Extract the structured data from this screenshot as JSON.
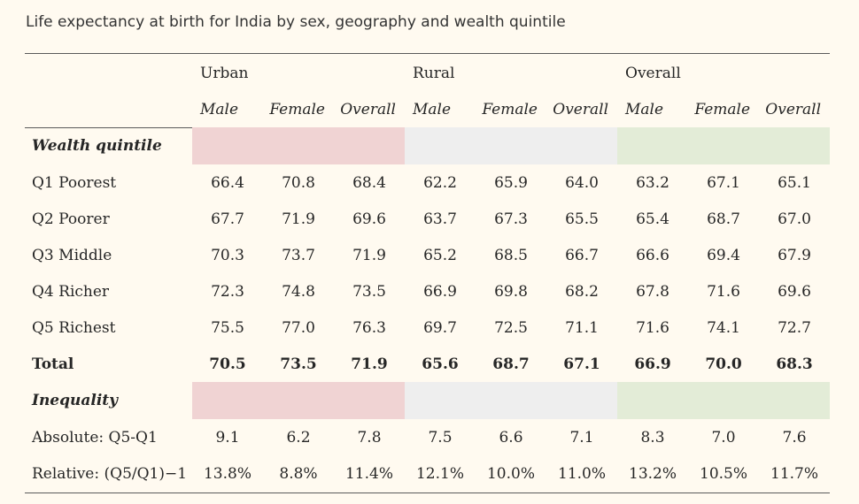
{
  "title": "Life expectancy at birth for India by sex, geography and wealth quintile",
  "groups": {
    "urban": "Urban",
    "rural": "Rural",
    "overall": "Overall"
  },
  "subheaders": [
    "Male",
    "Female",
    "Overall",
    "Male",
    "Female",
    "Overall",
    "Male",
    "Female",
    "Overall"
  ],
  "sections": {
    "wealth": {
      "label": "Wealth quintile",
      "rows": [
        {
          "label": "Q1 Poorest",
          "values": [
            "66.4",
            "70.8",
            "68.4",
            "62.2",
            "65.9",
            "64.0",
            "63.2",
            "67.1",
            "65.1"
          ]
        },
        {
          "label": "Q2 Poorer",
          "values": [
            "67.7",
            "71.9",
            "69.6",
            "63.7",
            "67.3",
            "65.5",
            "65.4",
            "68.7",
            "67.0"
          ]
        },
        {
          "label": "Q3 Middle",
          "values": [
            "70.3",
            "73.7",
            "71.9",
            "65.2",
            "68.5",
            "66.7",
            "66.6",
            "69.4",
            "67.9"
          ]
        },
        {
          "label": "Q4 Richer",
          "values": [
            "72.3",
            "74.8",
            "73.5",
            "66.9",
            "69.8",
            "68.2",
            "67.8",
            "71.6",
            "69.6"
          ]
        },
        {
          "label": "Q5 Richest",
          "values": [
            "75.5",
            "77.0",
            "76.3",
            "69.7",
            "72.5",
            "71.1",
            "71.6",
            "74.1",
            "72.7"
          ]
        }
      ],
      "total": {
        "label": "Total",
        "values": [
          "70.5",
          "73.5",
          "71.9",
          "65.6",
          "68.7",
          "67.1",
          "66.9",
          "70.0",
          "68.3"
        ]
      }
    },
    "inequality": {
      "label": "Inequality",
      "rows": [
        {
          "label": "Absolute: Q5-Q1",
          "values": [
            "9.1",
            "6.2",
            "7.8",
            "7.5",
            "6.6",
            "7.1",
            "8.3",
            "7.0",
            "7.6"
          ]
        },
        {
          "label": "Relative: (Q5/Q1)−1",
          "values": [
            "13.8%",
            "8.8%",
            "11.4%",
            "12.1%",
            "10.0%",
            "11.0%",
            "13.2%",
            "10.5%",
            "11.7%"
          ]
        }
      ]
    }
  },
  "colors": {
    "background": "#fffaf0",
    "urban_band": "#f0d3d3",
    "rural_band": "#eeeeee",
    "overall_band": "#e3ecd7",
    "rule": "#5a5a5a"
  }
}
